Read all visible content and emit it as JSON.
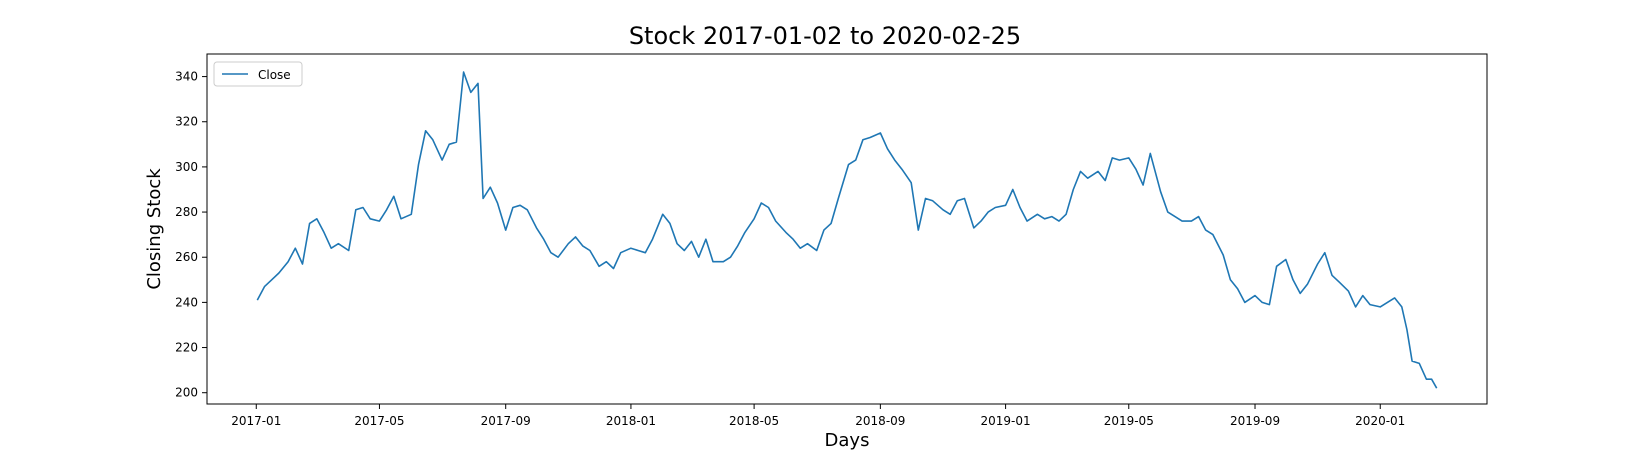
{
  "chart_data": {
    "type": "line",
    "title": "Stock 2017-01-02 to 2020-02-25",
    "xlabel": "Days",
    "ylabel": "Closing Stock",
    "xlim": [
      "2016-11-14",
      "2020-04-14"
    ],
    "ylim": [
      195,
      350
    ],
    "xticks": [
      {
        "value": "2017-01-01",
        "label": "2017-01"
      },
      {
        "value": "2017-05-01",
        "label": "2017-05"
      },
      {
        "value": "2017-09-01",
        "label": "2017-09"
      },
      {
        "value": "2018-01-01",
        "label": "2018-01"
      },
      {
        "value": "2018-05-01",
        "label": "2018-05"
      },
      {
        "value": "2018-09-01",
        "label": "2018-09"
      },
      {
        "value": "2019-01-01",
        "label": "2019-01"
      },
      {
        "value": "2019-05-01",
        "label": "2019-05"
      },
      {
        "value": "2019-09-01",
        "label": "2019-09"
      },
      {
        "value": "2020-01-01",
        "label": "2020-01"
      }
    ],
    "yticks": [
      200,
      220,
      240,
      260,
      280,
      300,
      320,
      340
    ],
    "grid": false,
    "legend": {
      "position": "upper-left",
      "entries": [
        "Close"
      ]
    },
    "series": [
      {
        "name": "Close",
        "color": "#1f77b4",
        "points": [
          [
            "2017-01-02",
            241
          ],
          [
            "2017-01-09",
            247
          ],
          [
            "2017-01-16",
            250
          ],
          [
            "2017-01-23",
            253
          ],
          [
            "2017-02-01",
            258
          ],
          [
            "2017-02-08",
            264
          ],
          [
            "2017-02-15",
            257
          ],
          [
            "2017-02-22",
            275
          ],
          [
            "2017-03-01",
            277
          ],
          [
            "2017-03-08",
            271
          ],
          [
            "2017-03-15",
            264
          ],
          [
            "2017-03-22",
            266
          ],
          [
            "2017-04-01",
            263
          ],
          [
            "2017-04-08",
            281
          ],
          [
            "2017-04-15",
            282
          ],
          [
            "2017-04-22",
            277
          ],
          [
            "2017-05-01",
            276
          ],
          [
            "2017-05-08",
            281
          ],
          [
            "2017-05-15",
            287
          ],
          [
            "2017-05-22",
            277
          ],
          [
            "2017-06-01",
            279
          ],
          [
            "2017-06-08",
            301
          ],
          [
            "2017-06-15",
            316
          ],
          [
            "2017-06-22",
            312
          ],
          [
            "2017-07-01",
            303
          ],
          [
            "2017-07-08",
            310
          ],
          [
            "2017-07-15",
            311
          ],
          [
            "2017-07-22",
            342
          ],
          [
            "2017-07-29",
            333
          ],
          [
            "2017-08-05",
            337
          ],
          [
            "2017-08-10",
            286
          ],
          [
            "2017-08-17",
            291
          ],
          [
            "2017-08-24",
            284
          ],
          [
            "2017-09-01",
            272
          ],
          [
            "2017-09-08",
            282
          ],
          [
            "2017-09-15",
            283
          ],
          [
            "2017-09-22",
            281
          ],
          [
            "2017-10-01",
            273
          ],
          [
            "2017-10-08",
            268
          ],
          [
            "2017-10-15",
            262
          ],
          [
            "2017-10-22",
            260
          ],
          [
            "2017-11-01",
            266
          ],
          [
            "2017-11-08",
            269
          ],
          [
            "2017-11-15",
            265
          ],
          [
            "2017-11-22",
            263
          ],
          [
            "2017-12-01",
            256
          ],
          [
            "2017-12-08",
            258
          ],
          [
            "2017-12-15",
            255
          ],
          [
            "2017-12-22",
            262
          ],
          [
            "2018-01-01",
            264
          ],
          [
            "2018-01-08",
            263
          ],
          [
            "2018-01-15",
            262
          ],
          [
            "2018-01-22",
            268
          ],
          [
            "2018-02-01",
            279
          ],
          [
            "2018-02-08",
            275
          ],
          [
            "2018-02-15",
            266
          ],
          [
            "2018-02-22",
            263
          ],
          [
            "2018-03-01",
            267
          ],
          [
            "2018-03-08",
            260
          ],
          [
            "2018-03-15",
            268
          ],
          [
            "2018-03-22",
            258
          ],
          [
            "2018-04-01",
            258
          ],
          [
            "2018-04-08",
            260
          ],
          [
            "2018-04-15",
            265
          ],
          [
            "2018-04-22",
            271
          ],
          [
            "2018-05-01",
            277
          ],
          [
            "2018-05-08",
            284
          ],
          [
            "2018-05-15",
            282
          ],
          [
            "2018-05-22",
            276
          ],
          [
            "2018-06-01",
            271
          ],
          [
            "2018-06-08",
            268
          ],
          [
            "2018-06-15",
            264
          ],
          [
            "2018-06-22",
            266
          ],
          [
            "2018-07-01",
            263
          ],
          [
            "2018-07-08",
            272
          ],
          [
            "2018-07-15",
            275
          ],
          [
            "2018-07-22",
            286
          ],
          [
            "2018-08-01",
            301
          ],
          [
            "2018-08-08",
            303
          ],
          [
            "2018-08-15",
            312
          ],
          [
            "2018-08-22",
            313
          ],
          [
            "2018-09-01",
            315
          ],
          [
            "2018-09-08",
            308
          ],
          [
            "2018-09-15",
            303
          ],
          [
            "2018-09-22",
            299
          ],
          [
            "2018-10-01",
            293
          ],
          [
            "2018-10-08",
            272
          ],
          [
            "2018-10-15",
            286
          ],
          [
            "2018-10-22",
            285
          ],
          [
            "2018-11-01",
            281
          ],
          [
            "2018-11-08",
            279
          ],
          [
            "2018-11-15",
            285
          ],
          [
            "2018-11-22",
            286
          ],
          [
            "2018-12-01",
            273
          ],
          [
            "2018-12-08",
            276
          ],
          [
            "2018-12-15",
            280
          ],
          [
            "2018-12-22",
            282
          ],
          [
            "2019-01-01",
            283
          ],
          [
            "2019-01-08",
            290
          ],
          [
            "2019-01-15",
            282
          ],
          [
            "2019-01-22",
            276
          ],
          [
            "2019-02-01",
            279
          ],
          [
            "2019-02-08",
            277
          ],
          [
            "2019-02-15",
            278
          ],
          [
            "2019-02-22",
            276
          ],
          [
            "2019-03-01",
            279
          ],
          [
            "2019-03-08",
            290
          ],
          [
            "2019-03-15",
            298
          ],
          [
            "2019-03-22",
            295
          ],
          [
            "2019-04-01",
            298
          ],
          [
            "2019-04-08",
            294
          ],
          [
            "2019-04-15",
            304
          ],
          [
            "2019-04-22",
            303
          ],
          [
            "2019-05-01",
            304
          ],
          [
            "2019-05-08",
            299
          ],
          [
            "2019-05-15",
            292
          ],
          [
            "2019-05-22",
            306
          ],
          [
            "2019-06-01",
            289
          ],
          [
            "2019-06-08",
            280
          ],
          [
            "2019-06-15",
            278
          ],
          [
            "2019-06-22",
            276
          ],
          [
            "2019-07-01",
            276
          ],
          [
            "2019-07-08",
            278
          ],
          [
            "2019-07-15",
            272
          ],
          [
            "2019-07-22",
            270
          ],
          [
            "2019-08-01",
            261
          ],
          [
            "2019-08-08",
            250
          ],
          [
            "2019-08-15",
            246
          ],
          [
            "2019-08-22",
            240
          ],
          [
            "2019-09-01",
            243
          ],
          [
            "2019-09-08",
            240
          ],
          [
            "2019-09-15",
            239
          ],
          [
            "2019-09-22",
            256
          ],
          [
            "2019-10-01",
            259
          ],
          [
            "2019-10-08",
            250
          ],
          [
            "2019-10-15",
            244
          ],
          [
            "2019-10-22",
            248
          ],
          [
            "2019-11-01",
            257
          ],
          [
            "2019-11-08",
            262
          ],
          [
            "2019-11-15",
            252
          ],
          [
            "2019-11-22",
            249
          ],
          [
            "2019-12-01",
            245
          ],
          [
            "2019-12-08",
            238
          ],
          [
            "2019-12-15",
            243
          ],
          [
            "2019-12-22",
            239
          ],
          [
            "2020-01-01",
            238
          ],
          [
            "2020-01-08",
            240
          ],
          [
            "2020-01-15",
            242
          ],
          [
            "2020-01-22",
            238
          ],
          [
            "2020-01-27",
            228
          ],
          [
            "2020-02-01",
            214
          ],
          [
            "2020-02-08",
            213
          ],
          [
            "2020-02-15",
            206
          ],
          [
            "2020-02-20",
            206
          ],
          [
            "2020-02-25",
            202
          ]
        ]
      }
    ]
  }
}
